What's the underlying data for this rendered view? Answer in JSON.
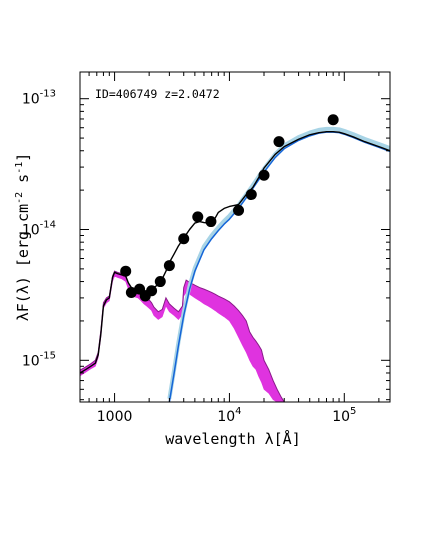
{
  "chart_data": {
    "type": "scatter",
    "title": "",
    "annotation": "ID=406749 z=2.0472",
    "xlabel": "wavelength λ[Å]",
    "ylabel_main": "λF(λ) [erg cm",
    "ylabel_exp1": "-2",
    "ylabel_mid": " s",
    "ylabel_exp2": "-1",
    "ylabel_end": "]",
    "x_scale": "log",
    "y_scale": "log",
    "xlim": [
      500,
      250000
    ],
    "ylim": [
      4.8e-16,
      1.6e-13
    ],
    "x_ticks": [
      {
        "value": 1000,
        "base": "1000",
        "exp": ""
      },
      {
        "value": 10000,
        "base": "10",
        "exp": "4"
      },
      {
        "value": 100000,
        "base": "10",
        "exp": "5"
      }
    ],
    "y_ticks": [
      {
        "value": 1e-15,
        "base": "10",
        "exp": "-15"
      },
      {
        "value": 1e-14,
        "base": "10",
        "exp": "-14"
      },
      {
        "value": 1e-13,
        "base": "10",
        "exp": "-13"
      }
    ],
    "colors": {
      "total_model": "#000000",
      "dust_envelope": "#a8d4e6",
      "dust_model": "#1565d8",
      "stellar_band": "#dd22dd",
      "stellar_edge": "#8a1c8a",
      "points": "#000000"
    },
    "series": [
      {
        "kind": "points",
        "x": [
          1250,
          1400,
          1650,
          1850,
          2100,
          2500,
          3000,
          4000,
          5300,
          6900,
          12000,
          15500,
          20000,
          27000,
          80000
        ],
        "y": [
          4.8e-15,
          3.3e-15,
          3.5e-15,
          3.1e-15,
          3.4e-15,
          4e-15,
          5.3e-15,
          8.5e-15,
          1.25e-14,
          1.15e-14,
          1.4e-14,
          1.85e-14,
          2.6e-14,
          4.7e-14,
          6.9e-14
        ]
      },
      {
        "kind": "line",
        "role": "total_model",
        "x": [
          500,
          560,
          620,
          680,
          720,
          760,
          800,
          850,
          900,
          960,
          1000,
          1060,
          1150,
          1250,
          1320,
          1400,
          1500,
          1600,
          1700,
          1800,
          1900,
          2000,
          2200,
          2400,
          2600,
          2800,
          3000,
          3300,
          3600,
          4000,
          4500,
          5000,
          5500,
          6000,
          6500,
          7000,
          7500,
          8000,
          9000,
          10000,
          12000,
          14000,
          16000,
          18000,
          20000,
          25000,
          30000,
          40000,
          50000,
          60000,
          70000,
          80000,
          90000,
          100000,
          120000,
          150000,
          200000,
          250000
        ],
        "y": [
          8e-16,
          8.5e-16,
          9e-16,
          9.5e-16,
          1.1e-15,
          1.6e-15,
          2.6e-15,
          2.9e-15,
          3e-15,
          4.3e-15,
          4.7e-15,
          4.6e-15,
          4.5e-15,
          4.4e-15,
          3.9e-15,
          3.6e-15,
          3.5e-15,
          3.5e-15,
          3.45e-15,
          3.4e-15,
          3.4e-15,
          3.4e-15,
          3.6e-15,
          3.8e-15,
          4.2e-15,
          4.8e-15,
          5.6e-15,
          6.5e-15,
          7.5e-15,
          8.6e-15,
          1e-14,
          1.12e-14,
          1.15e-14,
          1.13e-14,
          1.12e-14,
          1.14e-14,
          1.22e-14,
          1.35e-14,
          1.45e-14,
          1.5e-14,
          1.55e-14,
          1.85e-14,
          2.1e-14,
          2.5e-14,
          2.95e-14,
          3.75e-14,
          4.3e-14,
          4.9e-14,
          5.3e-14,
          5.5e-14,
          5.6e-14,
          5.6e-14,
          5.55e-14,
          5.4e-14,
          5.1e-14,
          4.7e-14,
          4.3e-14,
          4e-14
        ]
      },
      {
        "kind": "line",
        "role": "dust_model",
        "x": [
          3000,
          3300,
          3600,
          4000,
          4500,
          5000,
          6000,
          7000,
          8000,
          9000,
          10000,
          12000,
          15000,
          20000,
          25000,
          30000,
          40000,
          50000,
          60000,
          70000,
          80000,
          90000,
          100000,
          120000,
          150000,
          200000,
          250000
        ],
        "y": [
          4.8e-16,
          8e-16,
          1.3e-15,
          2.2e-15,
          3.5e-15,
          4.8e-15,
          7e-15,
          8.5e-15,
          9.8e-15,
          1.1e-14,
          1.2e-14,
          1.45e-14,
          1.9e-14,
          2.75e-14,
          3.55e-14,
          4.15e-14,
          4.8e-14,
          5.2e-14,
          5.45e-14,
          5.55e-14,
          5.55e-14,
          5.5e-14,
          5.35e-14,
          5.05e-14,
          4.65e-14,
          4.25e-14,
          3.95e-14
        ]
      },
      {
        "kind": "band",
        "role": "stellar_band",
        "x": [
          500,
          560,
          620,
          680,
          720,
          760,
          800,
          850,
          900,
          960,
          1000,
          1060,
          1150,
          1250,
          1320,
          1400,
          1500,
          1600,
          1700,
          1800,
          1900,
          2000,
          2100,
          2200,
          2400,
          2600,
          2800,
          3000,
          3300,
          3600,
          3900,
          4000,
          4200,
          4500,
          5000,
          5500,
          6000,
          6500,
          7000,
          7500,
          8000,
          9000,
          10000,
          11000,
          12000,
          13000,
          14000,
          15000,
          16000,
          17000,
          18000,
          19000,
          20000,
          22000,
          24000,
          26000,
          28000,
          30000
        ],
        "y_low": [
          7.6e-16,
          8.1e-16,
          8.6e-16,
          9e-16,
          1.05e-15,
          1.5e-15,
          2.5e-15,
          2.75e-15,
          2.85e-15,
          4e-15,
          4.4e-15,
          4.3e-15,
          4.2e-15,
          4e-15,
          3.5e-15,
          3.2e-15,
          3.05e-15,
          3e-15,
          2.85e-15,
          2.7e-15,
          2.6e-15,
          2.5e-15,
          2.4e-15,
          2.2e-15,
          2.05e-15,
          2.15e-15,
          2.6e-15,
          2.35e-15,
          2.2e-15,
          2.05e-15,
          2.25e-15,
          3.1e-15,
          3.3e-15,
          3.2e-15,
          3e-15,
          2.85e-15,
          2.7e-15,
          2.6e-15,
          2.5e-15,
          2.4e-15,
          2.3e-15,
          2.15e-15,
          2e-15,
          1.75e-15,
          1.5e-15,
          1.3e-15,
          1.15e-15,
          1e-15,
          9e-16,
          8.5e-16,
          7.5e-16,
          6.8e-16,
          6e-16,
          5.6e-16,
          5e-16,
          4.8e-16,
          4.8e-16,
          4.8e-16
        ],
        "y_high": [
          8.4e-16,
          8.9e-16,
          9.4e-16,
          1e-15,
          1.15e-15,
          1.7e-15,
          2.75e-15,
          3e-15,
          3.1e-15,
          4.4e-15,
          4.8e-15,
          4.7e-15,
          4.6e-15,
          4.4e-15,
          3.9e-15,
          3.6e-15,
          3.45e-15,
          3.4e-15,
          3.25e-15,
          3.1e-15,
          3e-15,
          2.9e-15,
          2.75e-15,
          2.55e-15,
          2.35e-15,
          2.45e-15,
          3e-15,
          2.7e-15,
          2.5e-15,
          2.35e-15,
          2.6e-15,
          3.6e-15,
          4.1e-15,
          3.95e-15,
          3.75e-15,
          3.6e-15,
          3.5e-15,
          3.4e-15,
          3.3e-15,
          3.2e-15,
          3.1e-15,
          2.95e-15,
          2.8e-15,
          2.6e-15,
          2.4e-15,
          2.2e-15,
          2e-15,
          1.65e-15,
          1.5e-15,
          1.4e-15,
          1.3e-15,
          1.2e-15,
          1e-15,
          8.5e-16,
          7e-16,
          6e-16,
          5.3e-16,
          4.8e-16
        ]
      }
    ]
  }
}
